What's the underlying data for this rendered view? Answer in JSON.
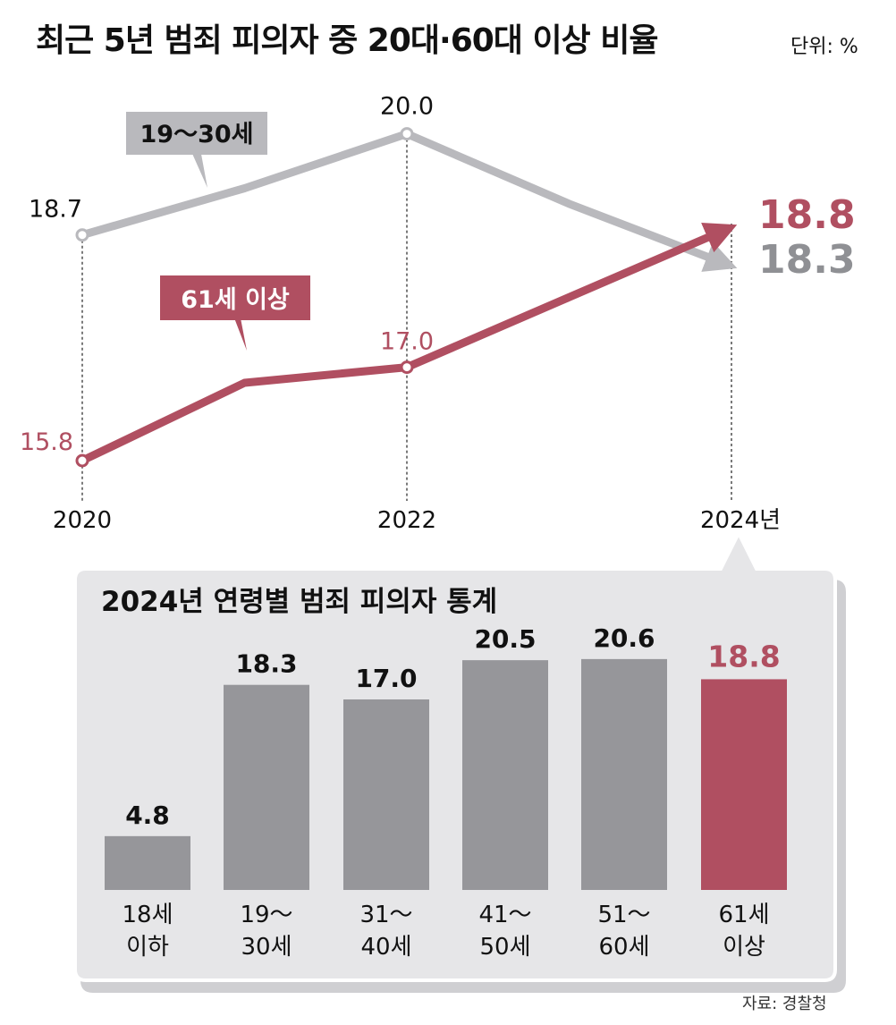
{
  "header": {
    "title": "최근 5년 범죄 피의자 중 20대·60대 이상 비율",
    "unit": "단위: %"
  },
  "colors": {
    "gray": "#b9b9bd",
    "gray_dark": "#8f9094",
    "red": "#b04f61",
    "panel": "#e6e6e8"
  },
  "chart_data": [
    {
      "type": "line",
      "x_labels": [
        "2020",
        "2022",
        "2024년"
      ],
      "x": [
        2020,
        2021,
        2022,
        2023,
        2024
      ],
      "ylim": [
        15,
        21
      ],
      "series": [
        {
          "name": "19~30세",
          "label": "19～30세",
          "color": "gray",
          "values": [
            18.7,
            19.3,
            20.0,
            19.1,
            18.3
          ],
          "point_labels": [
            {
              "i": 0,
              "text": "18.7"
            },
            {
              "i": 2,
              "text": "20.0"
            }
          ],
          "end_label": "18.3"
        },
        {
          "name": "61세 이상",
          "label": "61세 이상",
          "color": "red",
          "values": [
            15.8,
            16.8,
            17.0,
            17.9,
            18.8
          ],
          "point_labels": [
            {
              "i": 0,
              "text": "15.8"
            },
            {
              "i": 2,
              "text": "17.0"
            }
          ],
          "end_label": "18.8"
        }
      ]
    },
    {
      "type": "bar",
      "title": "2024년 연령별 범죄 피의자 통계",
      "categories": [
        "18세 이하",
        "19~30세",
        "31~40세",
        "41~50세",
        "51~60세",
        "61세 이상"
      ],
      "category_lines": [
        [
          "18세",
          "이하"
        ],
        [
          "19～",
          "30세"
        ],
        [
          "31～",
          "40세"
        ],
        [
          "41～",
          "50세"
        ],
        [
          "51～",
          "60세"
        ],
        [
          "61세",
          "이상"
        ]
      ],
      "values": [
        4.8,
        18.3,
        17.0,
        20.5,
        20.6,
        18.8
      ],
      "value_labels": [
        "4.8",
        "18.3",
        "17.0",
        "20.5",
        "20.6",
        "18.8"
      ],
      "highlight_index": 5,
      "ylim": [
        0,
        21
      ]
    }
  ],
  "footer": {
    "source": "자료: 경찰청"
  }
}
